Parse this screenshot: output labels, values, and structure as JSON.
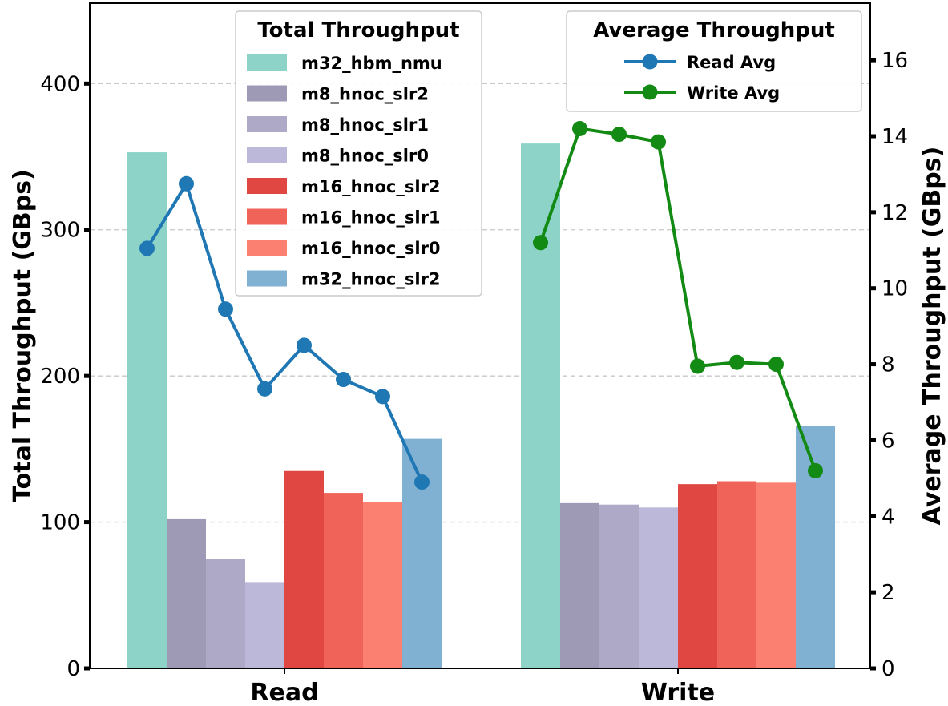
{
  "chart_data": {
    "type": "bar",
    "categories": [
      "Read",
      "Write"
    ],
    "ylabel": "Total Throughput (GBps)",
    "y2label": "Average Throughput (GBps)",
    "ylim": [
      0,
      455
    ],
    "y2lim": [
      0,
      17.5
    ],
    "yticks": [
      0,
      100,
      200,
      300,
      400
    ],
    "y2ticks": [
      0,
      2,
      4,
      6,
      8,
      10,
      12,
      14,
      16
    ],
    "grid": "horizontal dashed",
    "bar_legend_title": "Total Throughput",
    "bar_legend_position": "top-center",
    "line_legend_title": "Average Throughput",
    "line_legend_position": "top-right",
    "series": [
      {
        "name": "m32_hbm_nmu",
        "values": [
          353,
          359
        ],
        "color": "#8dd3c7"
      },
      {
        "name": "m8_hnoc_slr2",
        "values": [
          102,
          113
        ],
        "color": "#9e9ab6"
      },
      {
        "name": "m8_hnoc_slr1",
        "values": [
          75,
          112
        ],
        "color": "#ada9c7"
      },
      {
        "name": "m8_hnoc_slr0",
        "values": [
          59,
          110
        ],
        "color": "#bcb8da"
      },
      {
        "name": "m16_hnoc_slr2",
        "values": [
          135,
          126
        ],
        "color": "#e04742"
      },
      {
        "name": "m16_hnoc_slr1",
        "values": [
          120,
          128
        ],
        "color": "#f06358"
      },
      {
        "name": "m16_hnoc_slr0",
        "values": [
          114,
          127
        ],
        "color": "#fb8072"
      },
      {
        "name": "m32_hnoc_slr2",
        "values": [
          157,
          166
        ],
        "color": "#80b1d3"
      }
    ],
    "line_series": [
      {
        "name": "Read Avg",
        "category": "Read",
        "color": "#1f77b4",
        "values": [
          11.05,
          12.75,
          9.45,
          7.35,
          8.5,
          7.6,
          7.15,
          4.9
        ]
      },
      {
        "name": "Write Avg",
        "category": "Write",
        "color": "#138a13",
        "values": [
          11.2,
          14.2,
          14.05,
          13.85,
          7.95,
          8.05,
          8.0,
          5.2
        ]
      }
    ]
  }
}
